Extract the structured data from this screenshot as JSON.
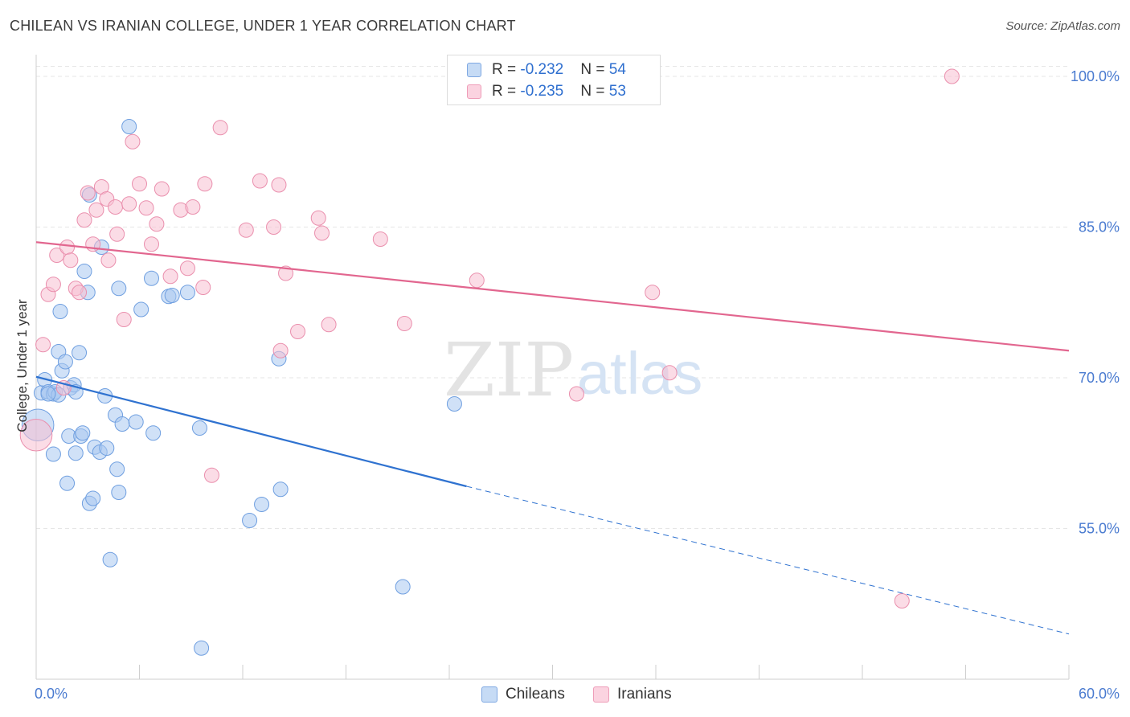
{
  "title": "CHILEAN VS IRANIAN COLLEGE, UNDER 1 YEAR CORRELATION CHART",
  "source": "Source: ZipAtlas.com",
  "legend": {
    "r_label": "R = ",
    "n_label": "N = ",
    "rows": [
      {
        "name": "Chileans",
        "r": "-0.232",
        "n": "54",
        "color": "#a9c8f0",
        "stroke": "#6f9fe0"
      },
      {
        "name": "Iranians",
        "r": "-0.235",
        "n": "53",
        "color": "#f8c0d2",
        "stroke": "#ea8fad"
      }
    ]
  },
  "watermark": {
    "zip": "ZIP",
    "atlas": "atlas"
  },
  "chart_data": {
    "type": "scatter",
    "title": "CHILEAN VS IRANIAN COLLEGE, UNDER 1 YEAR CORRELATION CHART",
    "xlabel": "",
    "ylabel": "College, Under 1 year",
    "xlim": [
      0,
      60
    ],
    "ylim": [
      40,
      102
    ],
    "x_tick_labels": [
      "0.0%",
      "60.0%"
    ],
    "y_ticks": [
      55,
      70,
      85,
      100
    ],
    "y_tick_labels": [
      "55.0%",
      "70.0%",
      "85.0%",
      "100.0%"
    ],
    "grid": true,
    "series": [
      {
        "name": "Chileans",
        "color": "#a9c8f0",
        "stroke": "#6f9fe0",
        "line_color": "#2f72d0",
        "trend": {
          "x0": 0,
          "y0": 70.1,
          "x1": 25,
          "y1": 59.2,
          "dash_to_x": 60,
          "dash_to_y": 44.5
        },
        "points": [
          [
            0.1,
            65.3,
            2.2
          ],
          [
            0.3,
            68.5,
            1
          ],
          [
            0.5,
            69.8,
            1
          ],
          [
            0.7,
            68.6,
            1
          ],
          [
            1.0,
            68.4,
            1
          ],
          [
            1.1,
            68.6,
            1
          ],
          [
            1.0,
            62.4,
            1
          ],
          [
            1.3,
            72.6,
            1
          ],
          [
            1.4,
            76.6,
            1
          ],
          [
            1.5,
            70.7,
            1
          ],
          [
            1.7,
            71.6,
            1
          ],
          [
            1.8,
            59.5,
            1
          ],
          [
            1.9,
            64.2,
            1
          ],
          [
            2.0,
            69.0,
            1
          ],
          [
            2.2,
            69.3,
            1
          ],
          [
            2.3,
            62.5,
            1
          ],
          [
            2.5,
            72.5,
            1
          ],
          [
            2.6,
            64.2,
            1
          ],
          [
            2.7,
            64.5,
            1
          ],
          [
            2.8,
            80.6,
            1
          ],
          [
            3.0,
            78.5,
            1
          ],
          [
            3.1,
            88.2,
            1
          ],
          [
            3.1,
            57.5,
            1
          ],
          [
            3.3,
            58.0,
            1
          ],
          [
            3.4,
            63.1,
            1
          ],
          [
            3.7,
            62.6,
            1
          ],
          [
            3.8,
            83.0,
            1
          ],
          [
            4.0,
            68.2,
            1
          ],
          [
            4.1,
            63.0,
            1
          ],
          [
            4.6,
            66.3,
            1
          ],
          [
            4.7,
            60.9,
            1
          ],
          [
            4.8,
            78.9,
            1
          ],
          [
            4.8,
            58.6,
            1
          ],
          [
            5.0,
            65.4,
            1
          ],
          [
            4.3,
            51.9,
            1
          ],
          [
            5.4,
            95.0,
            1
          ],
          [
            5.8,
            65.6,
            1
          ],
          [
            6.1,
            76.8,
            1
          ],
          [
            6.7,
            79.9,
            1
          ],
          [
            6.8,
            64.5,
            1
          ],
          [
            7.7,
            78.1,
            1
          ],
          [
            7.9,
            78.2,
            1
          ],
          [
            8.8,
            78.5,
            1
          ],
          [
            9.5,
            65.0,
            1
          ],
          [
            9.6,
            43.1,
            1
          ],
          [
            12.4,
            55.8,
            1
          ],
          [
            13.1,
            57.4,
            1
          ],
          [
            14.1,
            71.9,
            1
          ],
          [
            14.2,
            58.9,
            1
          ],
          [
            21.3,
            49.2,
            1
          ],
          [
            24.3,
            67.4,
            1
          ],
          [
            2.3,
            68.6,
            1
          ],
          [
            1.3,
            68.3,
            1
          ],
          [
            0.7,
            68.4,
            1
          ]
        ]
      },
      {
        "name": "Iranians",
        "color": "#f8c0d2",
        "stroke": "#ea8fad",
        "line_color": "#e2668f",
        "trend": {
          "x0": 0,
          "y0": 83.5,
          "x1": 60,
          "y1": 72.7
        },
        "points": [
          [
            0.0,
            64.3,
            2.2
          ],
          [
            0.4,
            73.3,
            1
          ],
          [
            0.7,
            78.3,
            1
          ],
          [
            1.0,
            79.3,
            1
          ],
          [
            1.2,
            82.2,
            1
          ],
          [
            1.6,
            69.0,
            1
          ],
          [
            1.8,
            83.0,
            1
          ],
          [
            2.0,
            81.7,
            1
          ],
          [
            2.3,
            78.9,
            1
          ],
          [
            2.5,
            78.5,
            1
          ],
          [
            2.8,
            85.7,
            1
          ],
          [
            3.0,
            88.4,
            1
          ],
          [
            3.3,
            83.3,
            1
          ],
          [
            3.5,
            86.7,
            1
          ],
          [
            3.8,
            89.0,
            1
          ],
          [
            4.1,
            87.8,
            1
          ],
          [
            4.2,
            81.7,
            1
          ],
          [
            4.6,
            87.0,
            1
          ],
          [
            4.7,
            84.3,
            1
          ],
          [
            5.1,
            75.8,
            1
          ],
          [
            5.4,
            87.3,
            1
          ],
          [
            5.6,
            93.5,
            1
          ],
          [
            6.0,
            89.3,
            1
          ],
          [
            6.4,
            86.9,
            1
          ],
          [
            6.7,
            83.3,
            1
          ],
          [
            7.0,
            85.3,
            1
          ],
          [
            7.3,
            88.8,
            1
          ],
          [
            7.8,
            80.1,
            1
          ],
          [
            8.4,
            86.7,
            1
          ],
          [
            8.8,
            80.9,
            1
          ],
          [
            9.1,
            87.0,
            1
          ],
          [
            9.7,
            79.0,
            1
          ],
          [
            9.8,
            89.3,
            1
          ],
          [
            10.2,
            60.3,
            1
          ],
          [
            10.7,
            94.9,
            1
          ],
          [
            12.2,
            84.7,
            1
          ],
          [
            13.0,
            89.6,
            1
          ],
          [
            13.8,
            85.0,
            1
          ],
          [
            14.1,
            89.2,
            1
          ],
          [
            14.2,
            72.7,
            1
          ],
          [
            14.5,
            80.4,
            1
          ],
          [
            15.2,
            74.6,
            1
          ],
          [
            16.4,
            85.9,
            1
          ],
          [
            16.6,
            84.4,
            1
          ],
          [
            17.0,
            75.3,
            1
          ],
          [
            20.0,
            83.8,
            1
          ],
          [
            21.4,
            75.4,
            1
          ],
          [
            25.6,
            79.7,
            1
          ],
          [
            31.4,
            68.4,
            1
          ],
          [
            35.8,
            78.5,
            1
          ],
          [
            36.8,
            70.5,
            1
          ],
          [
            50.3,
            47.8,
            1
          ],
          [
            53.2,
            100.0,
            1
          ]
        ]
      }
    ]
  }
}
